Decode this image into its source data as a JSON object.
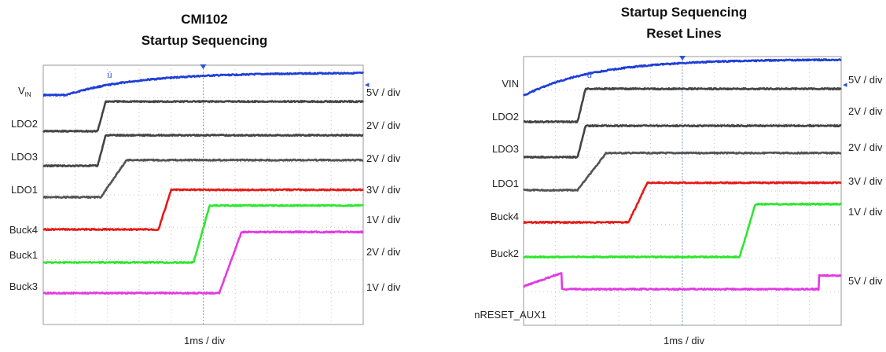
{
  "chart_data": [
    {
      "type": "line",
      "title": "CMI102",
      "subtitle": "Startup Sequencing",
      "xlabel": "1ms / div",
      "x_unit": "ms",
      "xlim": [
        0,
        10
      ],
      "series": [
        {
          "name": "VIN",
          "scale": "5V / div",
          "color": "#1f3fd6",
          "shape": "exp",
          "x0": 0.7,
          "tau": 2.2,
          "lo": 0,
          "hi": 1.0
        },
        {
          "name": "LDO2",
          "scale": "2V / div",
          "color": "#444444",
          "shape": "ramp",
          "x0": 1.7,
          "x1": 1.95,
          "lo": 0,
          "hi": 1.05
        },
        {
          "name": "LDO3",
          "scale": "2V / div",
          "color": "#444444",
          "shape": "ramp",
          "x0": 1.7,
          "x1": 1.95,
          "lo": 0,
          "hi": 1.05
        },
        {
          "name": "LDO1",
          "scale": "3V / div",
          "color": "#555555",
          "shape": "ramp",
          "x0": 1.8,
          "x1": 2.6,
          "lo": 0,
          "hi": 1.05
        },
        {
          "name": "Buck4",
          "scale": "1V / div",
          "color": "#e41b17",
          "shape": "ramp",
          "x0": 3.6,
          "x1": 4.0,
          "lo": 0,
          "hi": 1.05
        },
        {
          "name": "Buck1",
          "scale": "2V / div",
          "color": "#2ee62e",
          "shape": "ramp",
          "x0": 4.7,
          "x1": 5.2,
          "lo": 0,
          "hi": 1.05
        },
        {
          "name": "Buck3",
          "scale": "1V / div",
          "color": "#e23ae2",
          "shape": "ramp",
          "x0": 5.5,
          "x1": 6.2,
          "lo": 0,
          "hi": 1.05
        }
      ]
    },
    {
      "type": "line",
      "title": "Startup Sequencing",
      "subtitle": "Reset Lines",
      "xlabel": "1ms / div",
      "x_unit": "ms",
      "xlim": [
        0,
        10
      ],
      "series": [
        {
          "name": "VIN",
          "scale": "5V / div",
          "color": "#1f3fd6",
          "shape": "exp",
          "x0": 0.05,
          "tau": 2.2,
          "lo": 0,
          "hi": 1.0
        },
        {
          "name": "LDO2",
          "scale": "2V / div",
          "color": "#444444",
          "shape": "ramp",
          "x0": 1.7,
          "x1": 1.95,
          "lo": 0,
          "hi": 1.05
        },
        {
          "name": "LDO3",
          "scale": "2V / div",
          "color": "#444444",
          "shape": "ramp",
          "x0": 1.7,
          "x1": 1.95,
          "lo": 0,
          "hi": 1.05
        },
        {
          "name": "LDO1",
          "scale": "3V / div",
          "color": "#555555",
          "shape": "ramp",
          "x0": 1.7,
          "x1": 2.6,
          "lo": 0,
          "hi": 1.05
        },
        {
          "name": "Buck4",
          "scale": "1V / div",
          "color": "#e41b17",
          "shape": "ramp",
          "x0": 3.3,
          "x1": 3.9,
          "lo": 0,
          "hi": 1.05
        },
        {
          "name": "Buck2",
          "scale": "",
          "color": "#2ee62e",
          "shape": "ramp",
          "x0": 6.8,
          "x1": 7.3,
          "lo": 0,
          "hi": 1.05
        },
        {
          "name": "nRESET_AUX1",
          "scale": "5V / div",
          "color": "#e23ae2",
          "shape": "reset",
          "x0": 0.0,
          "x1": 1.2,
          "x2": 9.3,
          "lo": 0,
          "hi": 1.0
        }
      ]
    }
  ]
}
